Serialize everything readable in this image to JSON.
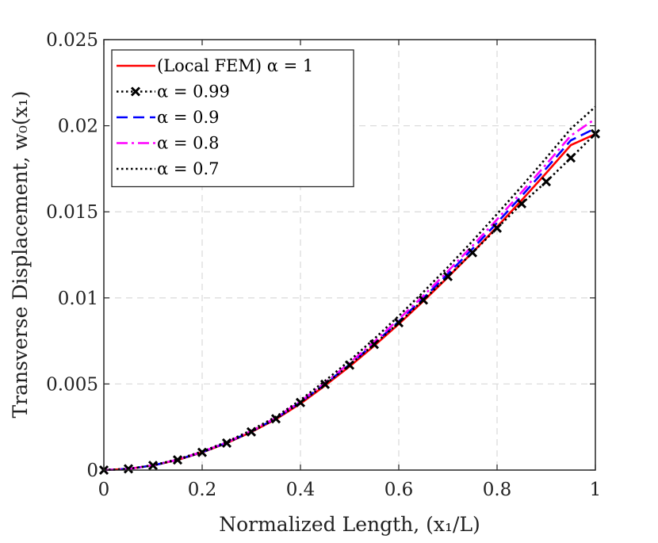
{
  "chart_data": {
    "type": "line",
    "xlabel": "Normalized Length, (x₁/L)",
    "ylabel": "Transverse Displacement, w₀(x₁)",
    "xlim": [
      0,
      1
    ],
    "ylim": [
      0,
      0.025
    ],
    "x_ticks": [
      0,
      0.2,
      0.4,
      0.6,
      0.8,
      1
    ],
    "x_tick_labels": [
      "0",
      "0.2",
      "0.4",
      "0.6",
      "0.8",
      "1"
    ],
    "y_ticks": [
      0,
      0.005,
      0.01,
      0.015,
      0.02,
      0.025
    ],
    "y_tick_labels": [
      "0",
      "0.005",
      "0.01",
      "0.015",
      "0.02",
      "0.025"
    ],
    "grid": true,
    "legend_position": "top-left",
    "x": [
      0,
      0.05,
      0.1,
      0.15,
      0.2,
      0.25,
      0.3,
      0.35,
      0.4,
      0.45,
      0.5,
      0.55,
      0.6,
      0.65,
      0.7,
      0.75,
      0.8,
      0.85,
      0.9,
      0.95,
      1.0
    ],
    "series": [
      {
        "name": "(Local FEM) α = 1",
        "color": "#ff0000",
        "style": "solid",
        "marker": "none",
        "values": [
          0,
          7e-05,
          0.00027,
          0.00059,
          0.00103,
          0.00157,
          0.00221,
          0.00295,
          0.00386,
          0.00491,
          0.00602,
          0.00722,
          0.00848,
          0.00981,
          0.0112,
          0.01264,
          0.01413,
          0.01567,
          0.01725,
          0.01887,
          0.01951
        ]
      },
      {
        "name": "α = 0.99",
        "color": "#000000",
        "style": "dotted",
        "marker": "x",
        "values": [
          0,
          7e-05,
          0.00027,
          0.00059,
          0.00103,
          0.00157,
          0.00222,
          0.00298,
          0.00392,
          0.00498,
          0.0061,
          0.0073,
          0.00856,
          0.00988,
          0.01124,
          0.01263,
          0.01405,
          0.01547,
          0.01675,
          0.01813,
          0.01953
        ]
      },
      {
        "name": "α = 0.9",
        "color": "#0000ff",
        "style": "dashed",
        "marker": "none",
        "values": [
          0,
          7e-05,
          0.00027,
          0.0006,
          0.00104,
          0.00159,
          0.00224,
          0.003,
          0.00394,
          0.005,
          0.00613,
          0.00735,
          0.00863,
          0.00998,
          0.01139,
          0.01285,
          0.01436,
          0.01592,
          0.01752,
          0.01915,
          0.01985
        ]
      },
      {
        "name": "α = 0.8",
        "color": "#ff00ff",
        "style": "dashdot",
        "marker": "none",
        "values": [
          0,
          7e-05,
          0.00028,
          0.00061,
          0.00106,
          0.00161,
          0.00227,
          0.00304,
          0.00399,
          0.00507,
          0.00622,
          0.00745,
          0.00876,
          0.01012,
          0.01155,
          0.01303,
          0.01456,
          0.01614,
          0.01776,
          0.01942,
          0.0204
        ]
      },
      {
        "name": "α = 0.7",
        "color": "#000000",
        "style": "dotted",
        "marker": "none",
        "values": [
          0,
          7e-05,
          0.00028,
          0.00062,
          0.00108,
          0.00164,
          0.00232,
          0.0031,
          0.00407,
          0.00518,
          0.00636,
          0.00762,
          0.00895,
          0.01034,
          0.01179,
          0.0133,
          0.01487,
          0.01648,
          0.01813,
          0.01982,
          0.0211
        ]
      }
    ]
  }
}
